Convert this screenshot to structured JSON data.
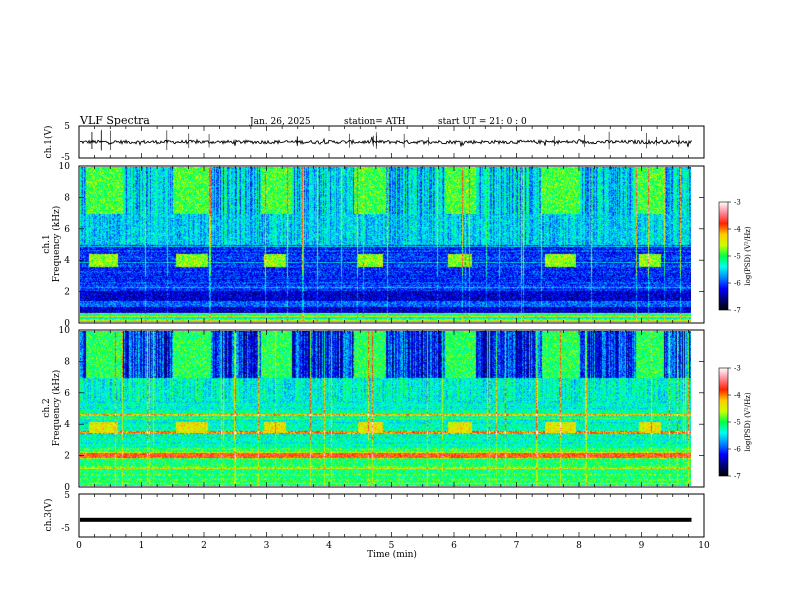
{
  "header": {
    "title": "VLF Spectra",
    "date": "Jan. 26, 2025",
    "station": "station= ATH",
    "start_ut": "start  UT  =    21: 0   : 0"
  },
  "chart_data": [
    {
      "type": "line",
      "id": "ch1-waveform",
      "ylabel": "ch.1(V)",
      "ylim": [
        -5,
        5
      ],
      "y_ticks": [
        "5",
        "-5"
      ],
      "xlim": [
        0,
        10
      ]
    },
    {
      "type": "heatmap",
      "id": "ch1-spectrogram",
      "ylabel": "ch.1\nFrequency  (kHz)",
      "ylim": [
        0,
        10
      ],
      "y_ticks": [
        "0",
        "2",
        "4",
        "6",
        "8",
        "10"
      ],
      "xlim": [
        0,
        10
      ],
      "data_end_min": 9.8,
      "colorbar": {
        "label": "log(PSD) (V²/Hz)",
        "ticks": [
          "-3",
          "-4",
          "-5",
          "-6",
          "-7"
        ],
        "range": [
          -7,
          -3
        ]
      },
      "tone_bursts_min": [
        [
          0.15,
          0.62
        ],
        [
          1.55,
          2.05
        ],
        [
          2.95,
          3.3
        ],
        [
          4.45,
          4.85
        ],
        [
          5.9,
          6.28
        ],
        [
          7.45,
          7.95
        ],
        [
          8.95,
          9.3
        ]
      ],
      "tone_freq_khz": 4.0,
      "hiss_bursts_min": [
        [
          0.1,
          0.7
        ],
        [
          1.5,
          2.1
        ],
        [
          2.9,
          3.4
        ],
        [
          4.4,
          4.9
        ],
        [
          5.85,
          6.35
        ],
        [
          7.4,
          8.0
        ],
        [
          8.9,
          9.35
        ]
      ]
    },
    {
      "type": "heatmap",
      "id": "ch2-spectrogram",
      "ylabel": "ch.2\nFrequency  (kHz)",
      "ylim": [
        0,
        10
      ],
      "y_ticks": [
        "0",
        "2",
        "4",
        "6",
        "8",
        "10"
      ],
      "xlim": [
        0,
        10
      ],
      "data_end_min": 9.8,
      "colorbar": {
        "label": "log(PSD) (V²/Hz)",
        "ticks": [
          "-3",
          "-4",
          "-5",
          "-6",
          "-7"
        ],
        "range": [
          -7,
          -3
        ]
      },
      "tone_bursts_min": [
        [
          0.15,
          0.62
        ],
        [
          1.55,
          2.05
        ],
        [
          2.95,
          3.3
        ],
        [
          4.45,
          4.85
        ],
        [
          5.9,
          6.28
        ],
        [
          7.45,
          7.95
        ],
        [
          8.95,
          9.3
        ]
      ],
      "tone_freq_khz": 3.8,
      "hiss_bursts_min": [
        [
          0.1,
          0.7
        ],
        [
          1.5,
          2.1
        ],
        [
          2.9,
          3.4
        ],
        [
          4.4,
          4.9
        ],
        [
          5.85,
          6.35
        ],
        [
          7.4,
          8.0
        ],
        [
          8.9,
          9.35
        ]
      ]
    },
    {
      "type": "line",
      "id": "ch3-waveform",
      "ylabel": "ch.3(V)",
      "ylim": [
        -5,
        5
      ],
      "y_ticks": [
        "5",
        "-5"
      ],
      "xlim": [
        0,
        10
      ],
      "level_v": -1
    }
  ],
  "x_axis": {
    "label": "Time  (min)",
    "ticks": [
      "0",
      "1",
      "2",
      "3",
      "4",
      "5",
      "6",
      "7",
      "8",
      "9",
      "10"
    ]
  },
  "colors": {
    "colormap": [
      "#000000",
      "#00007a",
      "#0000ff",
      "#0066ff",
      "#00ccff",
      "#00ffcc",
      "#00ff44",
      "#99ff00",
      "#ffff00",
      "#ff9900",
      "#ff0000",
      "#ff99aa",
      "#ffffff"
    ]
  }
}
